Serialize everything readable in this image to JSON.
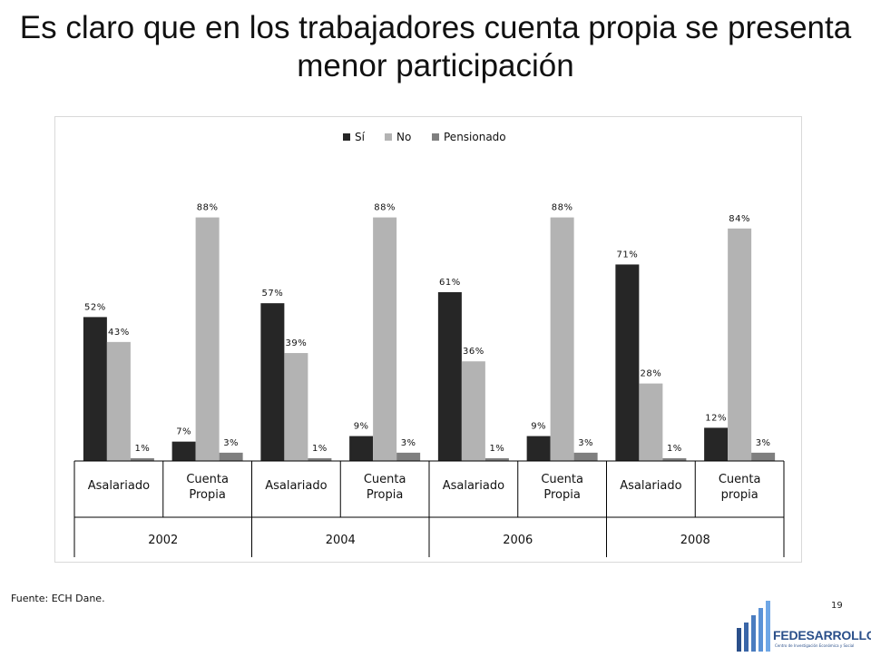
{
  "slide": {
    "title": "Es claro que en los trabajadores cuenta propia se presenta menor participación",
    "source": "Fuente: ECH Dane.",
    "page_number": "19"
  },
  "logo": {
    "name": "FEDESARROLLO",
    "tagline": "Centro de Investigación Económica y Social",
    "color": "#2a4f8a"
  },
  "chart_data": {
    "type": "bar",
    "title": "",
    "xlabel": "",
    "ylabel": "",
    "legend_position": "top",
    "grid": false,
    "ylim": [
      0,
      100
    ],
    "value_format": "percent",
    "groups": [
      "2002",
      "2004",
      "2006",
      "2008"
    ],
    "categories": [
      {
        "group": "2002",
        "label": "Asalariado"
      },
      {
        "group": "2002",
        "label": "Cuenta Propia"
      },
      {
        "group": "2004",
        "label": "Asalariado"
      },
      {
        "group": "2004",
        "label": "Cuenta Propia"
      },
      {
        "group": "2006",
        "label": "Asalariado"
      },
      {
        "group": "2006",
        "label": "Cuenta Propia"
      },
      {
        "group": "2008",
        "label": "Asalariado"
      },
      {
        "group": "2008",
        "label": "Cuenta propia"
      }
    ],
    "series": [
      {
        "name": "Sí",
        "color": "#262626",
        "values": [
          52,
          7,
          57,
          9,
          61,
          9,
          71,
          12
        ]
      },
      {
        "name": "No",
        "color": "#b3b3b3",
        "values": [
          43,
          88,
          39,
          88,
          36,
          88,
          28,
          84
        ]
      },
      {
        "name": "Pensionado",
        "color": "#7f7f7f",
        "values": [
          1,
          3,
          1,
          3,
          1,
          3,
          1,
          3
        ]
      }
    ]
  }
}
